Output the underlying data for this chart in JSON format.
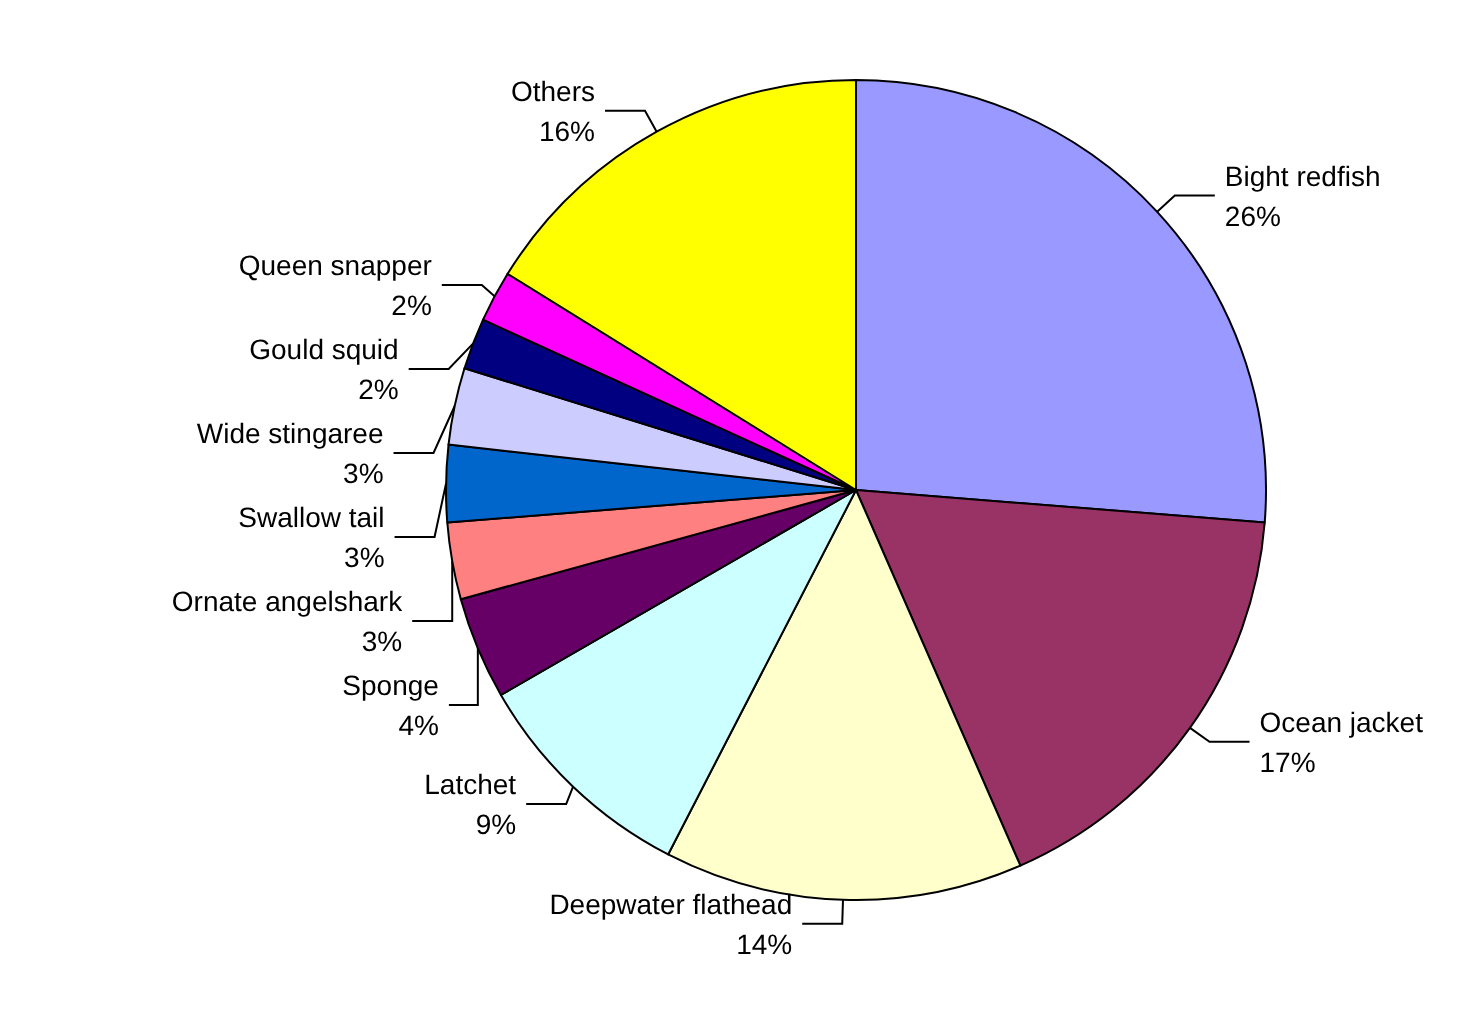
{
  "chart_data": {
    "type": "pie",
    "categories": [
      "Bight redfish",
      "Ocean jacket",
      "Deepwater flathead",
      "Latchet",
      "Sponge",
      "Ornate angelshark",
      "Swallow tail",
      "Wide stingaree",
      "Gould squid",
      "Queen snapper",
      "Others"
    ],
    "values": [
      26,
      17,
      14,
      9,
      4,
      3,
      3,
      3,
      2,
      2,
      16
    ],
    "value_labels": [
      "26%",
      "17%",
      "14%",
      "9%",
      "4%",
      "3%",
      "3%",
      "3%",
      "2%",
      "2%",
      "16%"
    ],
    "colors": [
      "#9999ff",
      "#993366",
      "#ffffcc",
      "#ccffff",
      "#660066",
      "#ff8080",
      "#0066cc",
      "#ccccff",
      "#000080",
      "#ff00ff",
      "#ffff00"
    ]
  }
}
